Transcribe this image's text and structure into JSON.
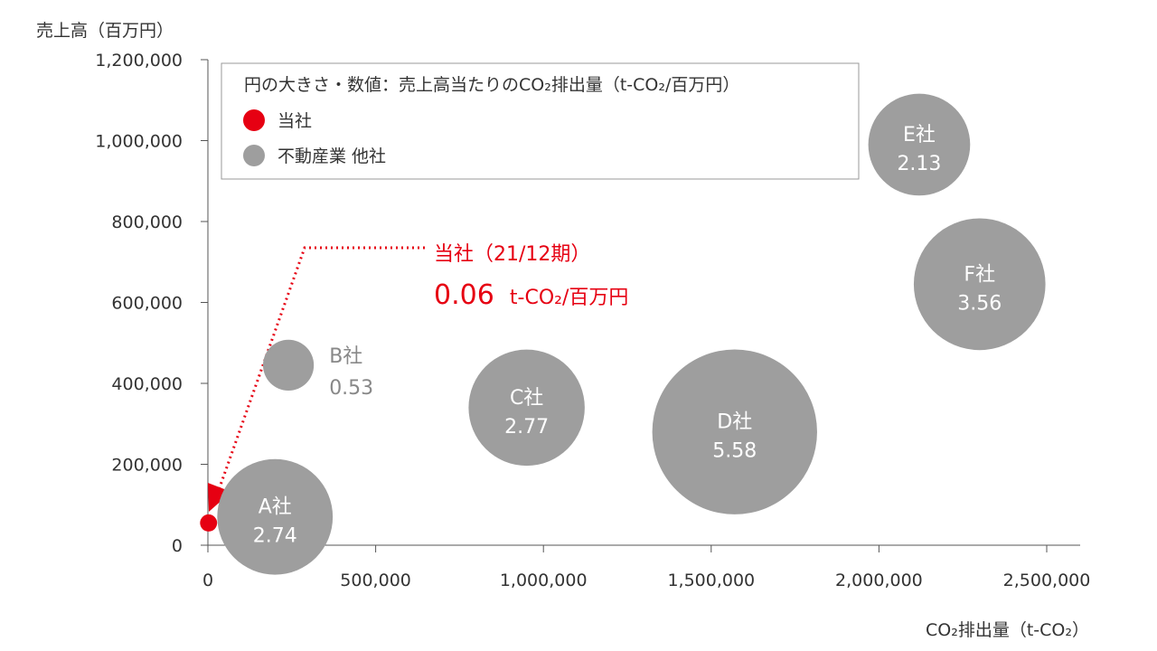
{
  "chart_data": {
    "type": "scatter",
    "subtype": "bubble",
    "ylabel": "売上高（百万円）",
    "xlabel": "CO₂排出量（t-CO₂）",
    "xlim": [
      0,
      2500000
    ],
    "ylim": [
      0,
      1200000
    ],
    "xticks": [
      "0",
      "500,000",
      "1,000,000",
      "1,500,000",
      "2,000,000",
      "2,500,000"
    ],
    "yticks": [
      "0",
      "200,000",
      "400,000",
      "600,000",
      "800,000",
      "1,000,000",
      "1,200,000"
    ],
    "grid": false,
    "legend": {
      "title": "円の大きさ・数値：売上高当たりのCO₂排出量（t-CO₂/百万円）",
      "placement": "top-left",
      "entries": [
        {
          "label": "当社",
          "color": "#e60012"
        },
        {
          "label": "不動産業 他社",
          "color": "#9e9e9e"
        }
      ]
    },
    "points": [
      {
        "name": "当社",
        "x": 2000,
        "y": 55000,
        "size": 0.06,
        "color": "#e60012"
      },
      {
        "name": "A社",
        "value_label": "2.74",
        "x": 200000,
        "y": 70000,
        "size": 2.74,
        "color": "#9e9e9e"
      },
      {
        "name": "B社",
        "value_label": "0.53",
        "x": 240000,
        "y": 445000,
        "size": 0.53,
        "color": "#9e9e9e"
      },
      {
        "name": "C社",
        "value_label": "2.77",
        "x": 950000,
        "y": 340000,
        "size": 2.77,
        "color": "#9e9e9e"
      },
      {
        "name": "D社",
        "value_label": "5.58",
        "x": 1570000,
        "y": 280000,
        "size": 5.58,
        "color": "#9e9e9e"
      },
      {
        "name": "E社",
        "value_label": "2.13",
        "x": 2120000,
        "y": 990000,
        "size": 2.13,
        "color": "#9e9e9e"
      },
      {
        "name": "F社",
        "value_label": "3.56",
        "x": 2300000,
        "y": 645000,
        "size": 3.56,
        "color": "#9e9e9e"
      }
    ],
    "annotation": {
      "line1": "当社（21/12期）",
      "value": "0.06",
      "unit": "t-CO₂/百万円",
      "color": "#e60012"
    }
  }
}
